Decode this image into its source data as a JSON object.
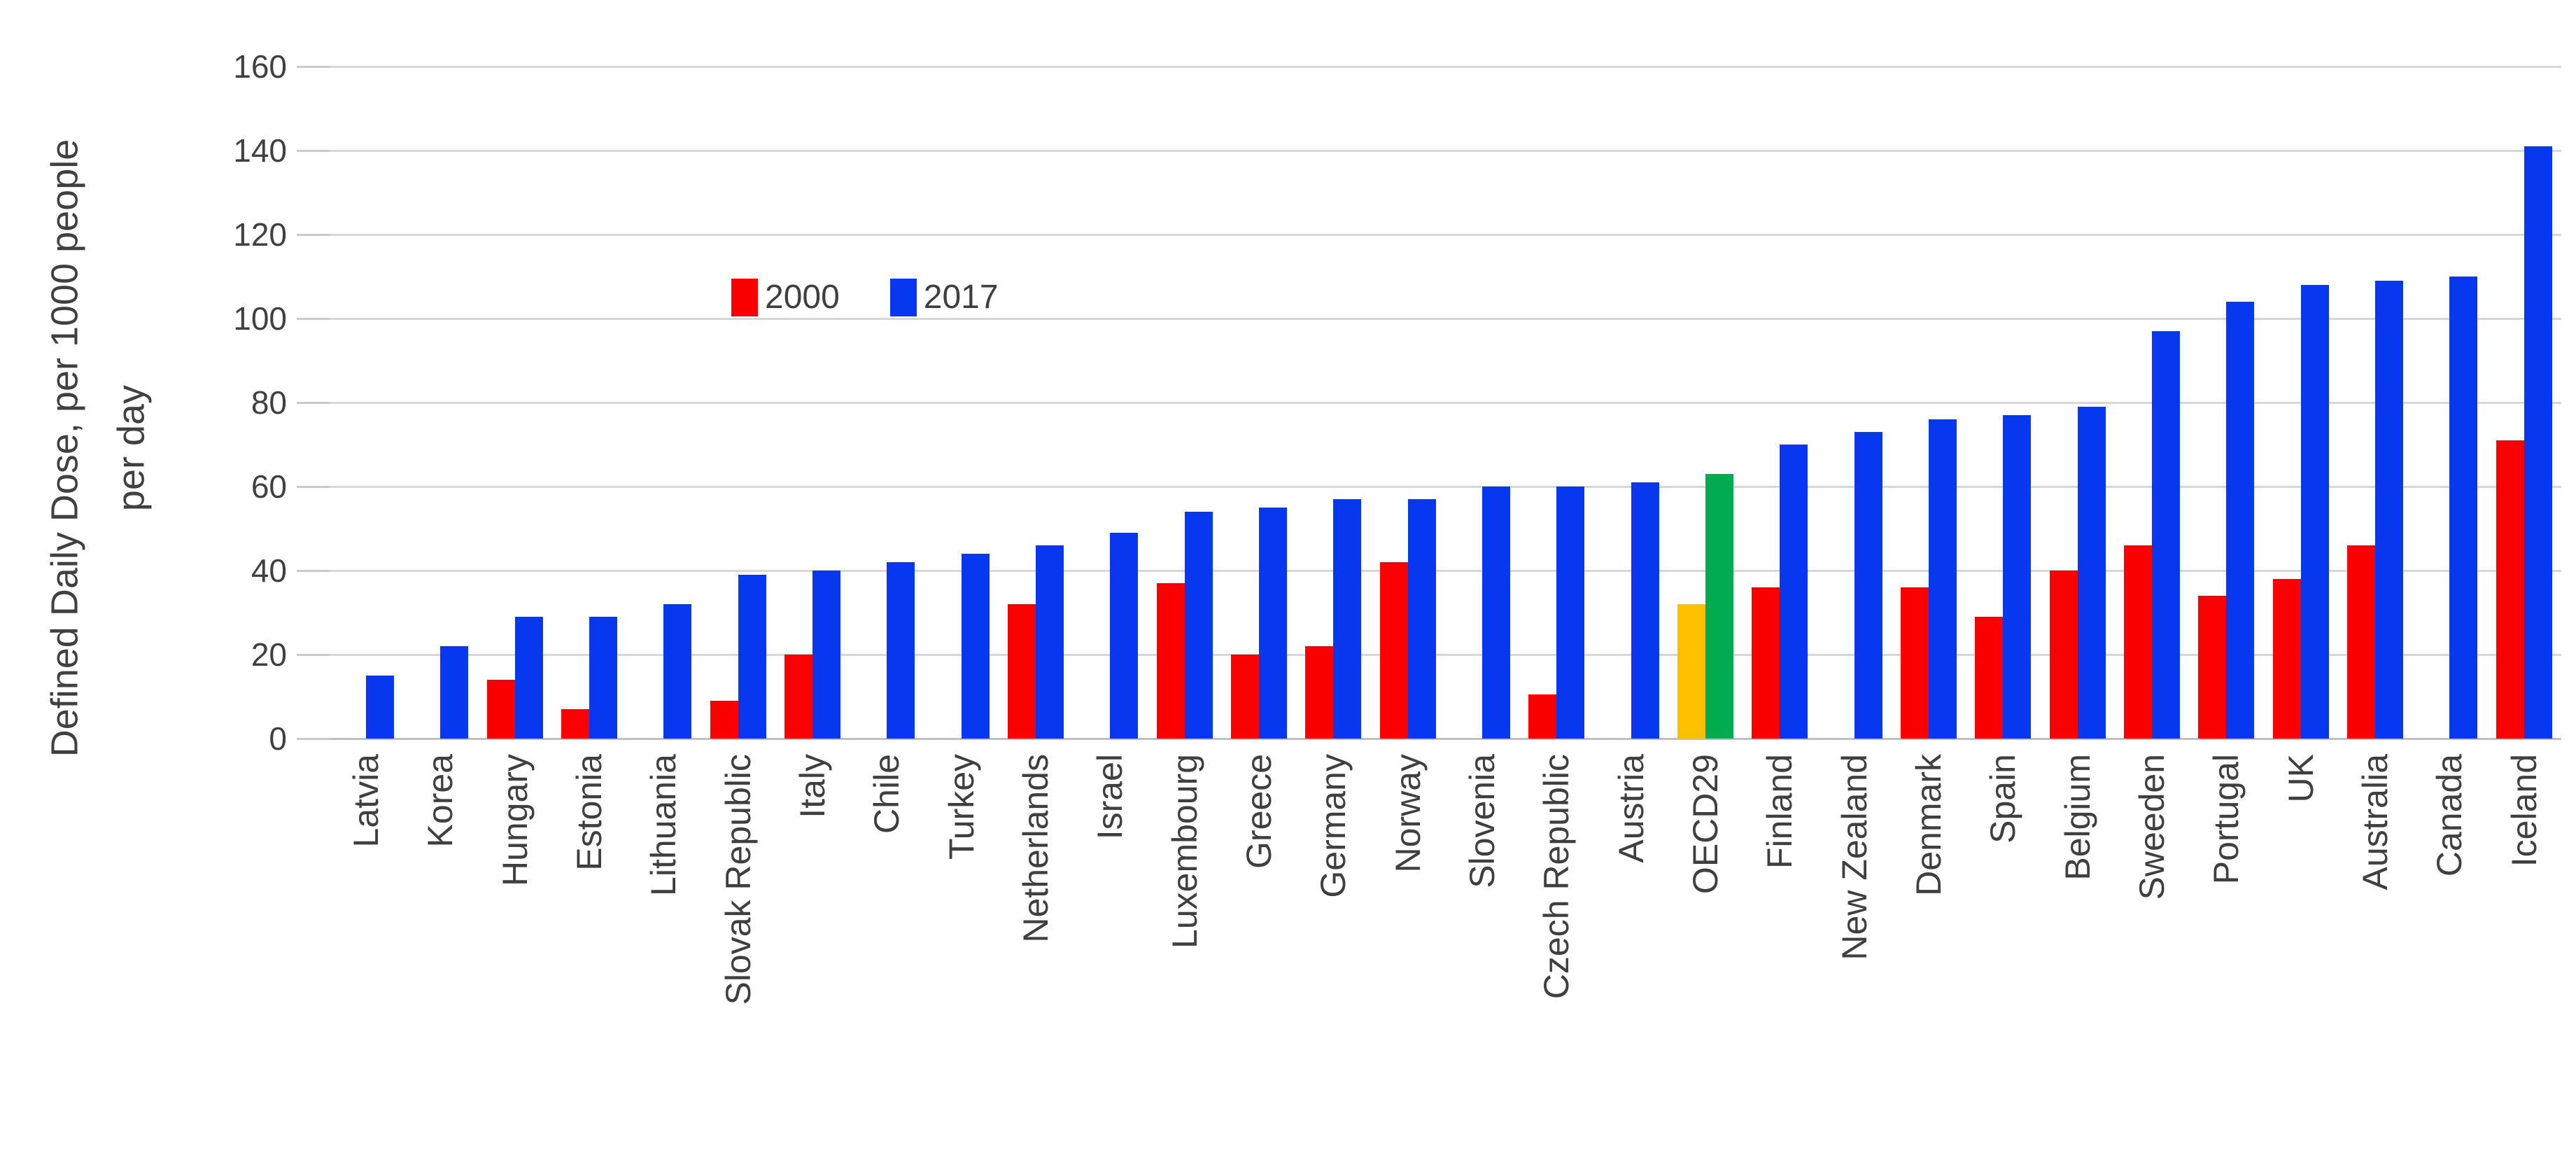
{
  "chart_data": {
    "type": "bar",
    "title": "",
    "ylabel": "Defined Daily Dose, per 1000 people per day",
    "ylabel_lines": [
      "Defined Daily Dose, per 1000 people",
      "per day"
    ],
    "xlabel": "",
    "ylim": [
      0,
      160
    ],
    "ytick_interval": 20,
    "yticks": [
      160,
      140,
      120,
      100,
      80,
      60,
      40,
      20,
      0
    ],
    "grid": true,
    "legend_position": "inside-upper-left",
    "legend": {
      "entries": [
        {
          "label": "2000",
          "color": "#fa0000"
        },
        {
          "label": "2017",
          "color": "#0837f0"
        }
      ]
    },
    "categories": [
      "Latvia",
      "Korea",
      "Hungary",
      "Estonia",
      "Lithuania",
      "Slovak Republic",
      "Italy",
      "Chile",
      "Turkey",
      "Netherlands",
      "Israel",
      "Luxembourg",
      "Greece",
      "Germany",
      "Norway",
      "Slovenia",
      "Czech Republic",
      "Austria",
      "OECD29",
      "Finland",
      "New Zealand",
      "Denmark",
      "Spain",
      "Belgium",
      "Sweeden",
      "Portugal",
      "UK",
      "Australia",
      "Canada",
      "Iceland"
    ],
    "series": [
      {
        "name": "2000",
        "color": "#fa0000",
        "values": [
          null,
          null,
          14,
          7,
          null,
          9,
          20,
          null,
          null,
          32,
          null,
          37,
          20,
          22,
          42,
          null,
          10.5,
          null,
          32,
          36,
          null,
          36,
          29,
          40,
          46,
          34,
          38,
          46,
          null,
          71
        ]
      },
      {
        "name": "2017",
        "color": "#0837f0",
        "values": [
          15,
          22,
          29,
          29,
          32,
          39,
          40,
          42,
          44,
          46,
          49,
          54,
          55,
          57,
          57,
          60,
          60,
          61,
          63,
          70,
          73,
          76,
          77,
          79,
          97,
          104,
          108,
          109,
          110,
          141
        ]
      }
    ],
    "highlight": {
      "category": "OECD29",
      "colors": {
        "2000": "#ffc000",
        "2017": "#00ac4f"
      }
    },
    "colors": {
      "gridline": "#d6d6d6",
      "axis_text": "#404040"
    }
  }
}
